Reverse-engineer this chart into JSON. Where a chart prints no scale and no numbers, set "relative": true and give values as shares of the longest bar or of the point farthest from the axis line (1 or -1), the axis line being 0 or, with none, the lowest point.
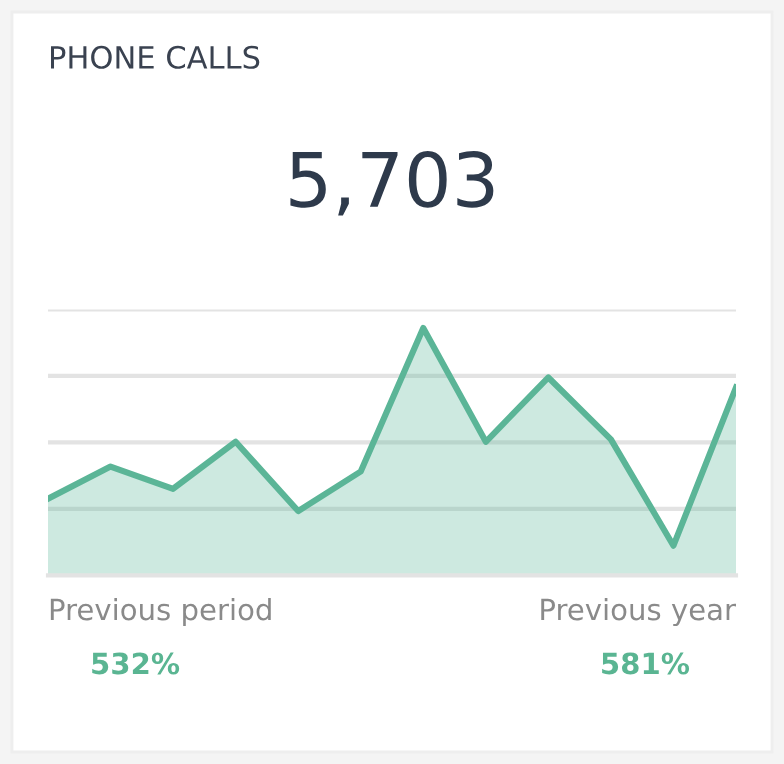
{
  "chart_data": {
    "type": "area",
    "title": "PHONE CALLS",
    "subtitle": "5,703",
    "categories": [
      null,
      null,
      null,
      null,
      null,
      null,
      null,
      null,
      null,
      null,
      null,
      null
    ],
    "relative": true,
    "series": [
      {
        "color": "#5bb597",
        "values": [
          0.31,
          0.44,
          0.35,
          0.54,
          0.26,
          0.42,
          1,
          0.54,
          0.8,
          0.55,
          0.12,
          0.76
        ]
      }
    ],
    "grid": true,
    "legend": false,
    "annotations": [
      "Previous period",
      "532%",
      "Previous year",
      "581%"
    ]
  }
}
